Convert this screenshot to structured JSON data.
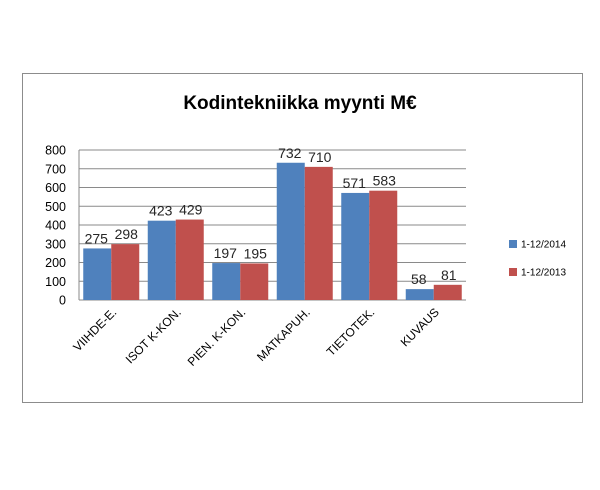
{
  "chart_data": {
    "type": "bar",
    "title": "Kodintekniikka myynti M€",
    "categories": [
      "VIIHDE-E.",
      "ISOT K-KON.",
      "PIEN. K-KON.",
      "MATKAPUH.",
      "TIETOTEK.",
      "KUVAUS"
    ],
    "series": [
      {
        "name": "1-12/2014",
        "color": "#4f81bd",
        "values": [
          275,
          423,
          197,
          732,
          571,
          58
        ]
      },
      {
        "name": "1-12/2013",
        "color": "#c0504d",
        "values": [
          298,
          429,
          195,
          710,
          583,
          81
        ]
      }
    ],
    "yticks": [
      "0",
      "100",
      "200",
      "300",
      "400",
      "500",
      "600",
      "700",
      "800"
    ],
    "ylim": [
      0,
      800
    ],
    "grid": true,
    "legend_position": "right"
  }
}
